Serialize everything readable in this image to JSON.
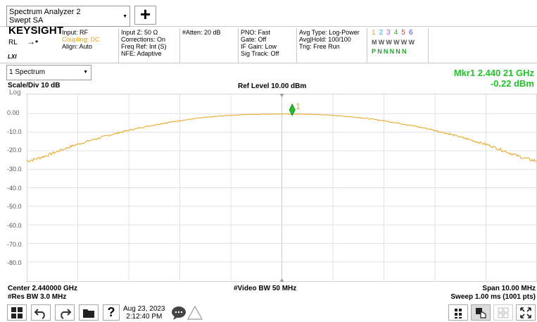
{
  "header": {
    "mode_line1": "Spectrum Analyzer 2",
    "mode_line2": "Swept SA",
    "add_label": "+"
  },
  "settings": {
    "brand": "KEYSIGHT",
    "rl": "RL",
    "lxi": "LXI",
    "input": "Input: RF",
    "coupling": "Coupling: DC",
    "align": "Align: Auto",
    "input_z": "Input Z: 50 Ω",
    "corrections": "Corrections: On",
    "freq_ref": "Freq Ref: Int (S)",
    "nfe": "NFE: Adaptive",
    "atten": "#Atten: 20 dB",
    "pno": "PNO: Fast",
    "gate": "Gate: Off",
    "if_gain": "IF Gain: Low",
    "sig_track": "Sig Track: Off",
    "avg_type": "Avg Type: Log-Power",
    "avg_hold": "Avg|Hold: 100/100",
    "trig": "Trig: Free Run",
    "traces": [
      "1",
      "2",
      "3",
      "4",
      "5",
      "6"
    ],
    "trace_colors": [
      "#e8a31a",
      "#2aa7e0",
      "#d050d0",
      "#22b022",
      "#e03c3c",
      "#3a3ae0"
    ],
    "trace_type_row": "MWWWWW",
    "trace_det_row": "PNNNNN"
  },
  "trace_select": {
    "label": "1 Spectrum"
  },
  "marker": {
    "label": "Mkr1  2.440 21 GHz",
    "value": "-0.22 dBm",
    "id": "1",
    "freq_ghz": 2.44021,
    "amp_dbm": -0.22
  },
  "display": {
    "scale_div": "Scale/Div 10 dB",
    "ref_level": "Ref Level 10.00 dBm",
    "log": "Log",
    "y_ticks": [
      "0.00",
      "-10.0",
      "-20.0",
      "-30.0",
      "-40.0",
      "-50.0",
      "-60.0",
      "-70.0",
      "-80.0"
    ],
    "center": "Center 2.440000 GHz",
    "video_bw": "#Video BW 50 MHz",
    "span": "Span 10.00 MHz",
    "res_bw": "#Res BW 3.0 MHz",
    "sweep": "Sweep 1.00 ms (1001 pts)"
  },
  "chart_data": {
    "type": "line",
    "ref_level_dbm": 10,
    "scale_db_per_div": 10,
    "ylim": [
      -90,
      10
    ],
    "xlim_ghz": [
      2.435,
      2.445
    ],
    "series": [
      {
        "color": "#e8a31a",
        "x": [
          2.435,
          2.436,
          2.437,
          2.438,
          2.439,
          2.44,
          2.441,
          2.442,
          2.443,
          2.444,
          2.445
        ],
        "y": [
          -25.5,
          -16.5,
          -9.0,
          -3.8,
          -0.9,
          -0.2,
          -0.9,
          -3.8,
          -9.0,
          -16.5,
          -25.5
        ]
      }
    ]
  },
  "taskbar": {
    "date": "Aug 23, 2023",
    "time": "2:12:40 PM"
  }
}
